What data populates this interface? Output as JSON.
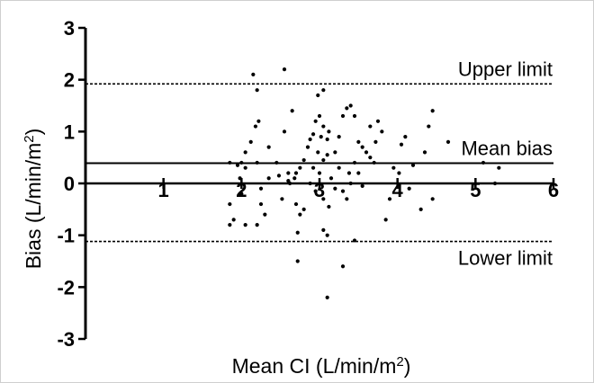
{
  "chart_data": {
    "type": "scatter",
    "xlabel": {
      "main": "Mean CI (L/min/m",
      "sup": "2",
      "tail": ")"
    },
    "ylabel": {
      "main": "Bias (L/min/m",
      "sup": "2",
      "tail": ")"
    },
    "xlim": [
      0,
      6
    ],
    "ylim": [
      -3,
      3
    ],
    "x_ticks": [
      1,
      2,
      3,
      4,
      5,
      6
    ],
    "y_ticks": [
      3,
      2,
      1,
      0,
      -1,
      -2,
      -3
    ],
    "reference_lines": [
      {
        "name": "Upper limit",
        "value": 1.92,
        "style": "dashed"
      },
      {
        "name": "Mean bias",
        "value": 0.39,
        "style": "solid"
      },
      {
        "name": "Lower limit",
        "value": -1.12,
        "style": "dashed"
      }
    ],
    "points": [
      [
        2.15,
        2.1
      ],
      [
        2.2,
        1.8
      ],
      [
        2.55,
        2.2
      ],
      [
        2.98,
        1.7
      ],
      [
        3.05,
        1.8
      ],
      [
        2.22,
        1.2
      ],
      [
        2.18,
        1.1
      ],
      [
        2.12,
        0.8
      ],
      [
        2.65,
        1.4
      ],
      [
        2.55,
        1.0
      ],
      [
        2.35,
        0.7
      ],
      [
        2.05,
        0.6
      ],
      [
        2.0,
        0.4
      ],
      [
        1.85,
        0.4
      ],
      [
        2.2,
        0.4
      ],
      [
        1.95,
        0.35
      ],
      [
        2.05,
        0.3
      ],
      [
        1.98,
        0.1
      ],
      [
        2.35,
        0.1
      ],
      [
        2.45,
        0.4
      ],
      [
        2.6,
        0.2
      ],
      [
        2.7,
        0.2
      ],
      [
        2.75,
        0.3
      ],
      [
        2.68,
        0.1
      ],
      [
        2.62,
        0.0
      ],
      [
        2.8,
        0.45
      ],
      [
        2.85,
        0.7
      ],
      [
        2.92,
        0.95
      ],
      [
        2.88,
        0.85
      ],
      [
        2.95,
        1.2
      ],
      [
        3.0,
        1.3
      ],
      [
        3.05,
        1.1
      ],
      [
        3.12,
        1.0
      ],
      [
        3.1,
        0.85
      ],
      [
        3.02,
        0.9
      ],
      [
        2.98,
        0.6
      ],
      [
        2.92,
        0.3
      ],
      [
        2.88,
        0.0
      ],
      [
        2.95,
        -0.15
      ],
      [
        3.0,
        0.2
      ],
      [
        3.05,
        0.45
      ],
      [
        3.1,
        0.55
      ],
      [
        3.2,
        0.6
      ],
      [
        3.25,
        0.9
      ],
      [
        3.3,
        1.3
      ],
      [
        3.35,
        1.45
      ],
      [
        3.4,
        1.5
      ],
      [
        3.45,
        1.3
      ],
      [
        3.5,
        0.8
      ],
      [
        3.55,
        0.7
      ],
      [
        3.6,
        0.6
      ],
      [
        3.65,
        0.5
      ],
      [
        3.45,
        0.4
      ],
      [
        3.38,
        0.2
      ],
      [
        3.25,
        0.3
      ],
      [
        3.2,
        -0.1
      ],
      [
        3.3,
        -0.15
      ],
      [
        3.35,
        -0.3
      ],
      [
        3.4,
        0.0
      ],
      [
        3.15,
        0.1
      ],
      [
        3.5,
        0.2
      ],
      [
        3.55,
        -0.05
      ],
      [
        3.05,
        -0.3
      ],
      [
        3.12,
        -0.45
      ],
      [
        2.8,
        -0.5
      ],
      [
        2.75,
        -0.6
      ],
      [
        2.7,
        -0.4
      ],
      [
        2.52,
        -0.3
      ],
      [
        2.48,
        0.15
      ],
      [
        2.6,
        0.05
      ],
      [
        2.25,
        -0.1
      ],
      [
        2.25,
        -0.4
      ],
      [
        2.2,
        -0.8
      ],
      [
        2.05,
        -0.8
      ],
      [
        1.85,
        -0.8
      ],
      [
        1.85,
        -0.4
      ],
      [
        2.3,
        -0.6
      ],
      [
        2.72,
        -0.95
      ],
      [
        3.05,
        -0.9
      ],
      [
        3.1,
        -1.0
      ],
      [
        3.45,
        -1.1
      ],
      [
        2.72,
        -1.5
      ],
      [
        3.3,
        -1.6
      ],
      [
        3.1,
        -2.2
      ],
      [
        3.8,
        1.0
      ],
      [
        3.75,
        1.2
      ],
      [
        3.95,
        0.3
      ],
      [
        4.02,
        0.2
      ],
      [
        3.9,
        -0.3
      ],
      [
        3.85,
        -0.7
      ],
      [
        4.1,
        0.9
      ],
      [
        4.05,
        0.75
      ],
      [
        4.2,
        0.35
      ],
      [
        4.3,
        -0.5
      ],
      [
        4.35,
        0.6
      ],
      [
        4.45,
        1.4
      ],
      [
        4.4,
        1.1
      ],
      [
        4.45,
        -0.3
      ],
      [
        4.65,
        0.8
      ],
      [
        5.1,
        0.4
      ],
      [
        5.3,
        0.3
      ],
      [
        5.25,
        0.0
      ],
      [
        3.65,
        1.1
      ],
      [
        3.72,
        0.8
      ],
      [
        3.7,
        0.4
      ],
      [
        4.15,
        -0.1
      ],
      [
        1.9,
        -0.7
      ],
      [
        2.0,
        -0.2
      ]
    ]
  }
}
